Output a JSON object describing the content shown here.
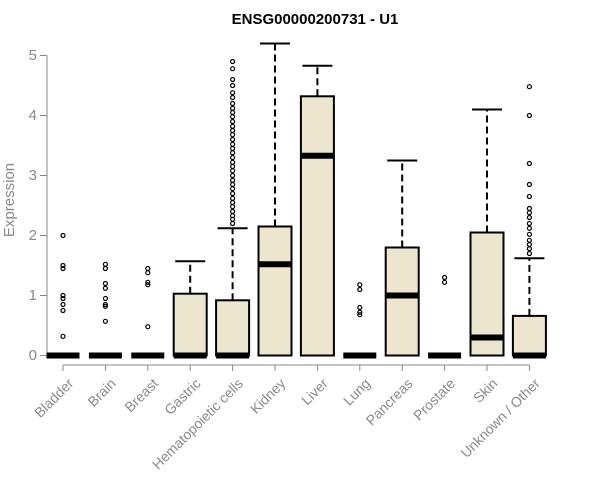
{
  "chart_data": {
    "type": "box",
    "title": "ENSG00000200731 - U1",
    "ylabel": "Expression",
    "xlabel": "",
    "ylim": [
      0,
      5.2
    ],
    "yticks": [
      0,
      1,
      2,
      3,
      4,
      5
    ],
    "grid": false,
    "legend": "none",
    "colors": {
      "box_fill": "#ede6cf",
      "stroke": "#000000",
      "axis": "#8a8a8a"
    },
    "categories": [
      "Bladder",
      "Brain",
      "Breast",
      "Gastric",
      "Hematopoietic cells",
      "Kidney",
      "Liver",
      "Lung",
      "Pancreas",
      "Prostate",
      "Skin",
      "Unknown / Other"
    ],
    "boxes": [
      {
        "q1": 0,
        "median": 0,
        "q3": 0,
        "whisker_low": 0,
        "whisker_high": 0,
        "outliers": [
          2.0,
          1.5,
          1.45,
          1.0,
          0.95,
          0.85,
          0.75,
          0.32
        ]
      },
      {
        "q1": 0,
        "median": 0,
        "q3": 0,
        "whisker_low": 0,
        "whisker_high": 0,
        "outliers": [
          1.52,
          1.45,
          1.2,
          1.12,
          0.95,
          0.85,
          0.82,
          0.57
        ]
      },
      {
        "q1": 0,
        "median": 0,
        "q3": 0,
        "whisker_low": 0,
        "whisker_high": 0,
        "outliers": [
          1.45,
          1.38,
          1.22,
          1.18,
          0.48
        ]
      },
      {
        "q1": 0,
        "median": 0,
        "q3": 1.03,
        "whisker_low": 0,
        "whisker_high": 1.57,
        "outliers": []
      },
      {
        "q1": 0,
        "median": 0,
        "q3": 0.92,
        "whisker_low": 0,
        "whisker_high": 2.12,
        "outliers": [
          4.9,
          4.78,
          4.6,
          4.5,
          4.38,
          4.3,
          4.2,
          4.12,
          4.05,
          3.98,
          3.9,
          3.82,
          3.75,
          3.68,
          3.6,
          3.52,
          3.45,
          3.38,
          3.3,
          3.22,
          3.15,
          3.08,
          3.0,
          2.92,
          2.85,
          2.78,
          2.7,
          2.62,
          2.55,
          2.48,
          2.4,
          2.33,
          2.27,
          2.2
        ]
      },
      {
        "q1": 0,
        "median": 1.52,
        "q3": 2.15,
        "whisker_low": 0,
        "whisker_high": 5.2,
        "outliers": []
      },
      {
        "q1": 0,
        "median": 3.33,
        "q3": 4.32,
        "whisker_low": 0,
        "whisker_high": 4.83,
        "outliers": []
      },
      {
        "q1": 0,
        "median": 0,
        "q3": 0,
        "whisker_low": 0,
        "whisker_high": 0,
        "outliers": [
          1.18,
          1.1,
          0.8,
          0.72,
          0.68
        ]
      },
      {
        "q1": 0,
        "median": 1.0,
        "q3": 1.8,
        "whisker_low": 0,
        "whisker_high": 3.25,
        "outliers": []
      },
      {
        "q1": 0,
        "median": 0,
        "q3": 0,
        "whisker_low": 0,
        "whisker_high": 0,
        "outliers": [
          1.3,
          1.22
        ]
      },
      {
        "q1": 0,
        "median": 0.3,
        "q3": 2.05,
        "whisker_low": 0,
        "whisker_high": 4.1,
        "outliers": []
      },
      {
        "q1": 0,
        "median": 0,
        "q3": 0.66,
        "whisker_low": 0,
        "whisker_high": 1.62,
        "outliers": [
          4.48,
          4.0,
          3.2,
          2.85,
          2.65,
          2.45,
          2.38,
          2.3,
          2.2,
          2.12,
          2.02,
          1.92,
          1.85,
          1.78,
          1.7
        ]
      }
    ]
  }
}
